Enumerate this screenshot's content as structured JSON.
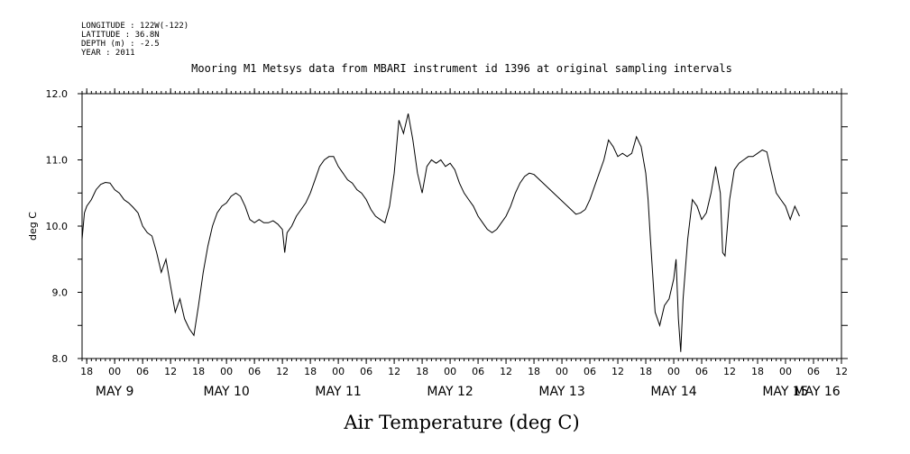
{
  "header": {
    "longitude": "LONGITUDE : 122W(-122)",
    "latitude": "LATITUDE : 36.8N",
    "depth": "DEPTH (m) : -2.5",
    "year": "YEAR : 2011"
  },
  "chart_data": {
    "type": "line",
    "title": "Mooring M1 Metsys data from MBARI instrument id 1396 at original sampling intervals",
    "xlabel": "Air Temperature (deg C)",
    "ylabel": "deg C",
    "x_unit": "hours since 2011-05-08 17:00",
    "xlim": [
      0,
      163
    ],
    "ylim": [
      8.0,
      12.0
    ],
    "y_ticks": [
      {
        "v": 8.0,
        "label": "8.0"
      },
      {
        "v": 9.0,
        "label": "9.0"
      },
      {
        "v": 10.0,
        "label": "10.0"
      },
      {
        "v": 11.0,
        "label": "11.0"
      },
      {
        "v": 12.0,
        "label": "12.0"
      }
    ],
    "x_ticks": [
      {
        "h": 1,
        "label": "18"
      },
      {
        "h": 7,
        "label": "00"
      },
      {
        "h": 13,
        "label": "06"
      },
      {
        "h": 19,
        "label": "12"
      },
      {
        "h": 25,
        "label": "18"
      },
      {
        "h": 31,
        "label": "00"
      },
      {
        "h": 37,
        "label": "06"
      },
      {
        "h": 43,
        "label": "12"
      },
      {
        "h": 49,
        "label": "18"
      },
      {
        "h": 55,
        "label": "00"
      },
      {
        "h": 61,
        "label": "06"
      },
      {
        "h": 67,
        "label": "12"
      },
      {
        "h": 73,
        "label": "18"
      },
      {
        "h": 79,
        "label": "00"
      },
      {
        "h": 85,
        "label": "06"
      },
      {
        "h": 91,
        "label": "12"
      },
      {
        "h": 97,
        "label": "18"
      },
      {
        "h": 103,
        "label": "00"
      },
      {
        "h": 109,
        "label": "06"
      },
      {
        "h": 115,
        "label": "12"
      },
      {
        "h": 121,
        "label": "18"
      },
      {
        "h": 127,
        "label": "00"
      },
      {
        "h": 133,
        "label": "06"
      },
      {
        "h": 139,
        "label": "12"
      },
      {
        "h": 145,
        "label": "18"
      },
      {
        "h": 151,
        "label": "00"
      },
      {
        "h": 157,
        "label": "06"
      },
      {
        "h": 163,
        "label": "12"
      }
    ],
    "day_labels": [
      {
        "h": 7,
        "label": "MAY  9"
      },
      {
        "h": 31,
        "label": "MAY 10"
      },
      {
        "h": 55,
        "label": "MAY 11"
      },
      {
        "h": 79,
        "label": "MAY 12"
      },
      {
        "h": 103,
        "label": "MAY 13"
      },
      {
        "h": 127,
        "label": "MAY 14"
      },
      {
        "h": 151,
        "label": "MAY 15"
      },
      {
        "h": 175,
        "label": "MAY 16"
      }
    ],
    "series": [
      {
        "points": [
          [
            0,
            9.8
          ],
          [
            0.5,
            10.2
          ],
          [
            1,
            10.3
          ],
          [
            2,
            10.4
          ],
          [
            3,
            10.55
          ],
          [
            4,
            10.63
          ],
          [
            5,
            10.66
          ],
          [
            6,
            10.65
          ],
          [
            7,
            10.55
          ],
          [
            8,
            10.5
          ],
          [
            9,
            10.4
          ],
          [
            10,
            10.35
          ],
          [
            11,
            10.28
          ],
          [
            12,
            10.2
          ],
          [
            13,
            10.0
          ],
          [
            14,
            9.9
          ],
          [
            15,
            9.85
          ],
          [
            16,
            9.6
          ],
          [
            17,
            9.3
          ],
          [
            18,
            9.5
          ],
          [
            19,
            9.1
          ],
          [
            20,
            8.7
          ],
          [
            21,
            8.9
          ],
          [
            22,
            8.6
          ],
          [
            23,
            8.45
          ],
          [
            24,
            8.35
          ],
          [
            25,
            8.8
          ],
          [
            26,
            9.3
          ],
          [
            27,
            9.7
          ],
          [
            28,
            10.0
          ],
          [
            29,
            10.2
          ],
          [
            30,
            10.3
          ],
          [
            31,
            10.35
          ],
          [
            32,
            10.45
          ],
          [
            33,
            10.5
          ],
          [
            34,
            10.45
          ],
          [
            35,
            10.3
          ],
          [
            36,
            10.1
          ],
          [
            37,
            10.05
          ],
          [
            38,
            10.1
          ],
          [
            39,
            10.05
          ],
          [
            40,
            10.05
          ],
          [
            41,
            10.08
          ],
          [
            42,
            10.03
          ],
          [
            43,
            9.95
          ],
          [
            43.5,
            9.6
          ],
          [
            44,
            9.9
          ],
          [
            45,
            10.0
          ],
          [
            46,
            10.15
          ],
          [
            47,
            10.25
          ],
          [
            48,
            10.35
          ],
          [
            49,
            10.5
          ],
          [
            50,
            10.7
          ],
          [
            51,
            10.9
          ],
          [
            52,
            11.0
          ],
          [
            53,
            11.05
          ],
          [
            54,
            11.05
          ],
          [
            55,
            10.9
          ],
          [
            56,
            10.8
          ],
          [
            57,
            10.7
          ],
          [
            58,
            10.65
          ],
          [
            59,
            10.55
          ],
          [
            60,
            10.5
          ],
          [
            61,
            10.4
          ],
          [
            62,
            10.25
          ],
          [
            63,
            10.15
          ],
          [
            64,
            10.1
          ],
          [
            65,
            10.05
          ],
          [
            66,
            10.3
          ],
          [
            67,
            10.8
          ],
          [
            68,
            11.6
          ],
          [
            69,
            11.4
          ],
          [
            70,
            11.7
          ],
          [
            71,
            11.3
          ],
          [
            72,
            10.8
          ],
          [
            73,
            10.5
          ],
          [
            74,
            10.9
          ],
          [
            75,
            11.0
          ],
          [
            76,
            10.95
          ],
          [
            77,
            11.0
          ],
          [
            78,
            10.9
          ],
          [
            79,
            10.95
          ],
          [
            80,
            10.85
          ],
          [
            81,
            10.65
          ],
          [
            82,
            10.5
          ],
          [
            83,
            10.4
          ],
          [
            84,
            10.3
          ],
          [
            85,
            10.15
          ],
          [
            86,
            10.05
          ],
          [
            87,
            9.95
          ],
          [
            88,
            9.9
          ],
          [
            89,
            9.95
          ],
          [
            90,
            10.05
          ],
          [
            91,
            10.15
          ],
          [
            92,
            10.3
          ],
          [
            93,
            10.5
          ],
          [
            94,
            10.65
          ],
          [
            95,
            10.75
          ],
          [
            96,
            10.8
          ],
          [
            97,
            10.78
          ],
          [
            106,
            10.18
          ],
          [
            107,
            10.2
          ],
          [
            108,
            10.25
          ],
          [
            109,
            10.4
          ],
          [
            110,
            10.6
          ],
          [
            111,
            10.8
          ],
          [
            112,
            11.0
          ],
          [
            113,
            11.3
          ],
          [
            114,
            11.2
          ],
          [
            115,
            11.05
          ],
          [
            116,
            11.1
          ],
          [
            117,
            11.05
          ],
          [
            118,
            11.1
          ],
          [
            119,
            11.35
          ],
          [
            120,
            11.2
          ],
          [
            121,
            10.8
          ],
          [
            121.5,
            10.4
          ],
          [
            122,
            9.8
          ],
          [
            123,
            8.7
          ],
          [
            124,
            8.5
          ],
          [
            125,
            8.8
          ],
          [
            126,
            8.9
          ],
          [
            127,
            9.2
          ],
          [
            127.5,
            9.5
          ],
          [
            128,
            8.6
          ],
          [
            128.5,
            8.1
          ],
          [
            129,
            8.9
          ],
          [
            130,
            9.8
          ],
          [
            131,
            10.4
          ],
          [
            132,
            10.3
          ],
          [
            133,
            10.1
          ],
          [
            134,
            10.2
          ],
          [
            135,
            10.5
          ],
          [
            136,
            10.9
          ],
          [
            137,
            10.5
          ],
          [
            137.5,
            9.6
          ],
          [
            138,
            9.55
          ],
          [
            139,
            10.4
          ],
          [
            140,
            10.85
          ],
          [
            141,
            10.95
          ],
          [
            142,
            11.0
          ],
          [
            143,
            11.05
          ],
          [
            144,
            11.05
          ],
          [
            145,
            11.1
          ],
          [
            146,
            11.15
          ],
          [
            147,
            11.12
          ],
          [
            148,
            10.8
          ],
          [
            149,
            10.5
          ],
          [
            150,
            10.4
          ],
          [
            151,
            10.3
          ],
          [
            152,
            10.1
          ],
          [
            153,
            10.3
          ],
          [
            154,
            10.15
          ]
        ]
      }
    ]
  }
}
